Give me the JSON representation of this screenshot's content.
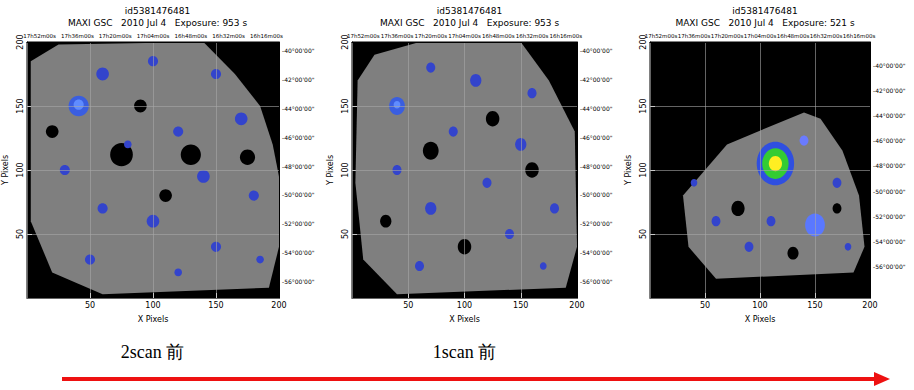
{
  "chart_data": [
    {
      "type": "image",
      "title": "id5381476481",
      "subtitle": "MAXI GSC   2010 Jul 4   Exposure: 953 s",
      "caption": "2scan 前",
      "xlabel": "X Pixels",
      "ylabel": "Y Pixels",
      "xlim": [
        0,
        200
      ],
      "ylim": [
        0,
        200
      ],
      "xticks": [
        50,
        100,
        150,
        200
      ],
      "yticks": [
        50,
        100,
        150,
        200
      ],
      "x2lim": [
        0,
        200
      ],
      "x2ticks": [
        {
          "value": 10,
          "label": "17h52m00s"
        },
        {
          "value": 40,
          "label": "17h36m00s"
        },
        {
          "value": 70,
          "label": "17h20m00s"
        },
        {
          "value": 100,
          "label": "17h04m00s"
        },
        {
          "value": 130,
          "label": "16h48m00s"
        },
        {
          "value": 160,
          "label": "16h32m00s"
        },
        {
          "value": 190,
          "label": "16h16m00s"
        }
      ],
      "y2lim": [
        0,
        200
      ],
      "y2ticks": [
        {
          "value": 193,
          "label": "-40°00'00\""
        },
        {
          "value": 170.5,
          "label": "-42°00'00\""
        },
        {
          "value": 148,
          "label": "-44°00'00\""
        },
        {
          "value": 125.5,
          "label": "-46°00'00\""
        },
        {
          "value": 103,
          "label": "-48°00'00\""
        },
        {
          "value": 80.5,
          "label": "-50°00'00\""
        },
        {
          "value": 58,
          "label": "-52°00'00\""
        },
        {
          "value": 35.5,
          "label": "-54°00'00\""
        },
        {
          "value": 13,
          "label": "-56°00'00\""
        }
      ],
      "grid": true,
      "footprint": {
        "color": "#7f7f7f",
        "points": [
          [
            3,
            185
          ],
          [
            25,
            198
          ],
          [
            140,
            200
          ],
          [
            165,
            175
          ],
          [
            185,
            150
          ],
          [
            195,
            120
          ],
          [
            200,
            95
          ],
          [
            200,
            40
          ],
          [
            192,
            8
          ],
          [
            60,
            3
          ],
          [
            20,
            20
          ],
          [
            3,
            60
          ]
        ]
      },
      "patches": [
        {
          "x": 75,
          "y": 112,
          "r": 9,
          "color": "#000000"
        },
        {
          "x": 130,
          "y": 112,
          "r": 8,
          "color": "#000000"
        },
        {
          "x": 175,
          "y": 110,
          "r": 6,
          "color": "#000000"
        },
        {
          "x": 20,
          "y": 130,
          "r": 5,
          "color": "#000000"
        },
        {
          "x": 90,
          "y": 150,
          "r": 5,
          "color": "#000000"
        },
        {
          "x": 110,
          "y": 80,
          "r": 5,
          "color": "#000000"
        },
        {
          "x": 60,
          "y": 175,
          "r": 5,
          "color": "#3344cc"
        },
        {
          "x": 100,
          "y": 185,
          "r": 4,
          "color": "#3344cc"
        },
        {
          "x": 150,
          "y": 175,
          "r": 4,
          "color": "#3344cc"
        },
        {
          "x": 170,
          "y": 140,
          "r": 5,
          "color": "#3344cc"
        },
        {
          "x": 120,
          "y": 130,
          "r": 4,
          "color": "#3344cc"
        },
        {
          "x": 80,
          "y": 120,
          "r": 3,
          "color": "#3344cc"
        },
        {
          "x": 30,
          "y": 100,
          "r": 4,
          "color": "#3344cc"
        },
        {
          "x": 140,
          "y": 95,
          "r": 5,
          "color": "#3344cc"
        },
        {
          "x": 180,
          "y": 80,
          "r": 4,
          "color": "#3344cc"
        },
        {
          "x": 60,
          "y": 70,
          "r": 4,
          "color": "#3344cc"
        },
        {
          "x": 100,
          "y": 60,
          "r": 5,
          "color": "#3344cc"
        },
        {
          "x": 150,
          "y": 40,
          "r": 4,
          "color": "#3344cc"
        },
        {
          "x": 120,
          "y": 20,
          "r": 3,
          "color": "#3344cc"
        },
        {
          "x": 50,
          "y": 30,
          "r": 4,
          "color": "#3344cc"
        },
        {
          "x": 185,
          "y": 30,
          "r": 3,
          "color": "#3344cc"
        },
        {
          "x": 41,
          "y": 150,
          "r": 8,
          "color": "#3a5ee0"
        },
        {
          "x": 41,
          "y": 151,
          "r": 4,
          "color": "#5f8cff"
        }
      ]
    },
    {
      "type": "image",
      "title": "id5381476481",
      "subtitle": "MAXI GSC   2010 Jul 4   Exposure: 953 s",
      "caption": "1scan 前",
      "xlabel": "X Pixels",
      "ylabel": "Y Pixels",
      "xlim": [
        0,
        200
      ],
      "ylim": [
        0,
        200
      ],
      "xticks": [
        50,
        100,
        150,
        200
      ],
      "yticks": [
        50,
        100,
        150,
        200
      ],
      "x2lim": [
        0,
        200
      ],
      "x2ticks": [
        {
          "value": 10,
          "label": "17h52m00s"
        },
        {
          "value": 40,
          "label": "17h36m00s"
        },
        {
          "value": 70,
          "label": "17h20m00s"
        },
        {
          "value": 100,
          "label": "17h04m00s"
        },
        {
          "value": 130,
          "label": "16h48m00s"
        },
        {
          "value": 160,
          "label": "16h32m00s"
        },
        {
          "value": 190,
          "label": "16h16m00s"
        }
      ],
      "y2lim": [
        0,
        200
      ],
      "y2ticks": [
        {
          "value": 193,
          "label": "-40°00'00\""
        },
        {
          "value": 170.5,
          "label": "-42°00'00\""
        },
        {
          "value": 148,
          "label": "-44°00'00\""
        },
        {
          "value": 125.5,
          "label": "-46°00'00\""
        },
        {
          "value": 103,
          "label": "-48°00'00\""
        },
        {
          "value": 80.5,
          "label": "-50°00'00\""
        },
        {
          "value": 58,
          "label": "-52°00'00\""
        },
        {
          "value": 35.5,
          "label": "-54°00'00\""
        },
        {
          "value": 13,
          "label": "-56°00'00\""
        }
      ],
      "grid": true,
      "footprint": {
        "color": "#7f7f7f",
        "points": [
          [
            5,
            170
          ],
          [
            20,
            190
          ],
          [
            60,
            200
          ],
          [
            150,
            200
          ],
          [
            175,
            170
          ],
          [
            198,
            130
          ],
          [
            200,
            40
          ],
          [
            190,
            8
          ],
          [
            40,
            3
          ],
          [
            10,
            30
          ],
          [
            3,
            90
          ]
        ]
      },
      "patches": [
        {
          "x": 70,
          "y": 115,
          "r": 7,
          "color": "#000000"
        },
        {
          "x": 125,
          "y": 140,
          "r": 6,
          "color": "#000000"
        },
        {
          "x": 160,
          "y": 100,
          "r": 6,
          "color": "#000000"
        },
        {
          "x": 30,
          "y": 60,
          "r": 5,
          "color": "#000000"
        },
        {
          "x": 100,
          "y": 40,
          "r": 6,
          "color": "#000000"
        },
        {
          "x": 70,
          "y": 180,
          "r": 4,
          "color": "#3344cc"
        },
        {
          "x": 110,
          "y": 170,
          "r": 5,
          "color": "#3344cc"
        },
        {
          "x": 160,
          "y": 160,
          "r": 4,
          "color": "#3344cc"
        },
        {
          "x": 90,
          "y": 130,
          "r": 4,
          "color": "#3344cc"
        },
        {
          "x": 150,
          "y": 120,
          "r": 5,
          "color": "#3344cc"
        },
        {
          "x": 40,
          "y": 100,
          "r": 4,
          "color": "#3344cc"
        },
        {
          "x": 120,
          "y": 90,
          "r": 4,
          "color": "#3344cc"
        },
        {
          "x": 180,
          "y": 70,
          "r": 4,
          "color": "#3344cc"
        },
        {
          "x": 70,
          "y": 70,
          "r": 5,
          "color": "#3344cc"
        },
        {
          "x": 140,
          "y": 50,
          "r": 4,
          "color": "#3344cc"
        },
        {
          "x": 60,
          "y": 25,
          "r": 4,
          "color": "#3344cc"
        },
        {
          "x": 170,
          "y": 25,
          "r": 3,
          "color": "#3344cc"
        },
        {
          "x": 40,
          "y": 150,
          "r": 7,
          "color": "#3a5ee0"
        },
        {
          "x": 40,
          "y": 151,
          "r": 3,
          "color": "#5f8cff"
        }
      ]
    },
    {
      "type": "image",
      "title": "id5381476481",
      "subtitle": "MAXI GSC   2010 Jul 4   Exposure: 521 s",
      "xlabel": "X Pixels",
      "ylabel": "Y Pixels",
      "xlim": [
        0,
        200
      ],
      "ylim": [
        0,
        200
      ],
      "xticks": [
        50,
        100,
        150,
        200
      ],
      "yticks": [
        50,
        100,
        150,
        200
      ],
      "x2lim": [
        0,
        200
      ],
      "x2ticks": [
        {
          "value": 10,
          "label": "17h52m00s"
        },
        {
          "value": 40,
          "label": "17h36m00s"
        },
        {
          "value": 70,
          "label": "17h20m00s"
        },
        {
          "value": 100,
          "label": "17h04m00s"
        },
        {
          "value": 130,
          "label": "16h48m00s"
        },
        {
          "value": 160,
          "label": "16h32m00s"
        },
        {
          "value": 190,
          "label": "16h16m00s"
        }
      ],
      "y2lim": [
        0,
        200
      ],
      "y2ticks": [
        {
          "value": 182,
          "label": "-40°00'00\""
        },
        {
          "value": 162.3,
          "label": "-42°00'00\""
        },
        {
          "value": 142.6,
          "label": "-44°00'00\""
        },
        {
          "value": 122.9,
          "label": "-46°00'00\""
        },
        {
          "value": 103.2,
          "label": "-48°00'00\""
        },
        {
          "value": 83.5,
          "label": "-50°00'00\""
        },
        {
          "value": 63.8,
          "label": "-52°00'00\""
        },
        {
          "value": 44.1,
          "label": "-54°00'00\""
        },
        {
          "value": 24.4,
          "label": "-56°00'00\""
        }
      ],
      "grid": true,
      "footprint": {
        "color": "#7f7f7f",
        "points": [
          [
            70,
            120
          ],
          [
            140,
            145
          ],
          [
            155,
            140
          ],
          [
            175,
            115
          ],
          [
            190,
            80
          ],
          [
            195,
            40
          ],
          [
            185,
            20
          ],
          [
            60,
            15
          ],
          [
            35,
            40
          ],
          [
            30,
            80
          ]
        ]
      },
      "patches": [
        {
          "x": 80,
          "y": 70,
          "r": 6,
          "color": "#000000"
        },
        {
          "x": 130,
          "y": 35,
          "r": 5,
          "color": "#000000"
        },
        {
          "x": 170,
          "y": 70,
          "r": 4,
          "color": "#000000"
        },
        {
          "x": 60,
          "y": 60,
          "r": 4,
          "color": "#3344cc"
        },
        {
          "x": 90,
          "y": 40,
          "r": 4,
          "color": "#3344cc"
        },
        {
          "x": 170,
          "y": 90,
          "r": 4,
          "color": "#3344cc"
        },
        {
          "x": 180,
          "y": 40,
          "r": 3,
          "color": "#3344cc"
        },
        {
          "x": 40,
          "y": 90,
          "r": 3,
          "color": "#3344cc"
        },
        {
          "x": 110,
          "y": 60,
          "r": 4,
          "color": "#3344cc"
        },
        {
          "x": 150,
          "y": 57,
          "r": 9,
          "color": "#5a78ff"
        },
        {
          "x": 140,
          "y": 123,
          "r": 4,
          "color": "#6a7bff"
        },
        {
          "x": 114,
          "y": 105,
          "r": 17,
          "color": "#2f4fe0"
        },
        {
          "x": 114,
          "y": 105,
          "r": 12,
          "color": "#33cc33"
        },
        {
          "x": 114,
          "y": 105,
          "r": 6,
          "color": "#ffee22"
        }
      ]
    }
  ],
  "arrow_direction": "right"
}
